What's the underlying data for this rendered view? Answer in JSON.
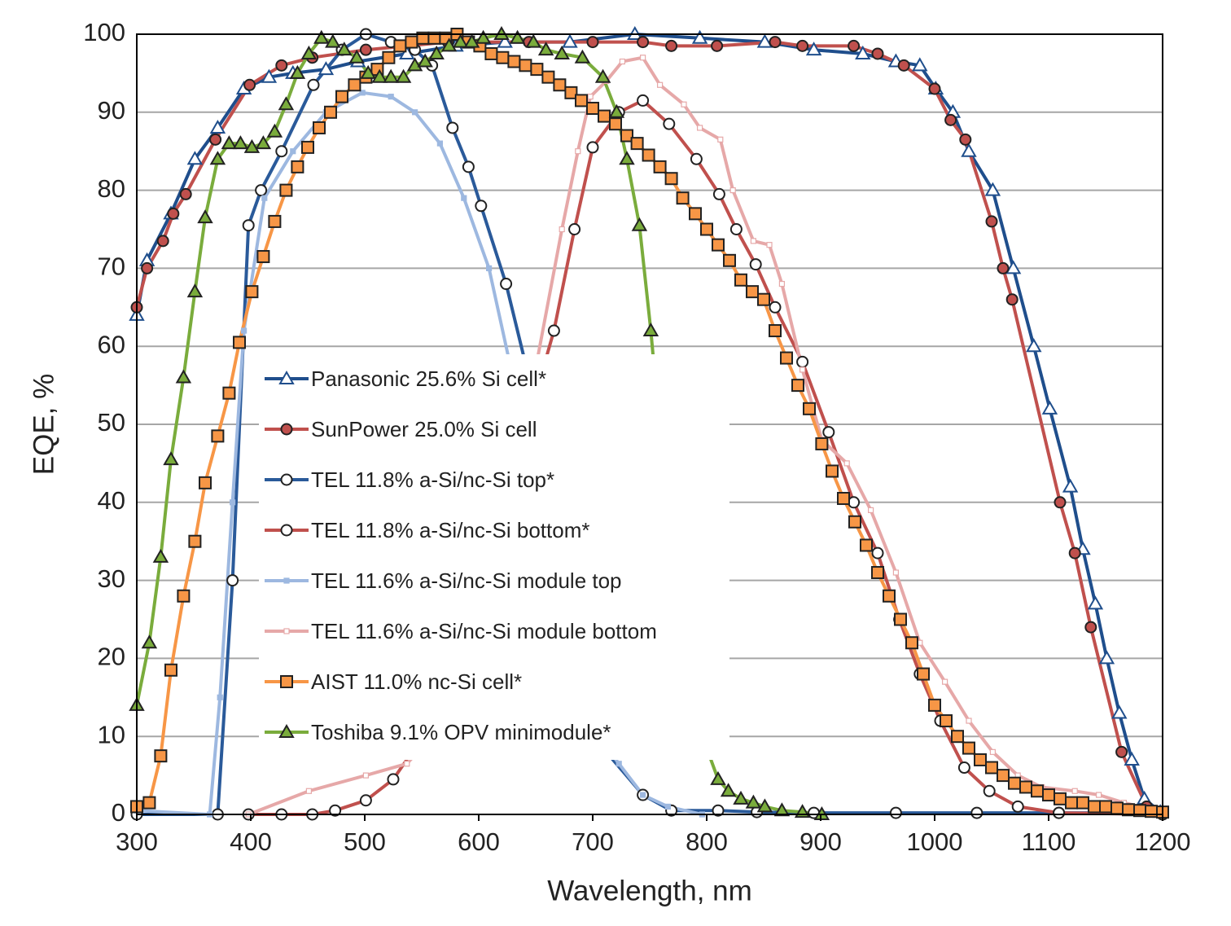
{
  "chart_data": {
    "type": "line",
    "xlabel": "Wavelength, nm",
    "ylabel": "EQE, %",
    "xlim": [
      300,
      1200
    ],
    "ylim": [
      0,
      100
    ],
    "xticks": [
      300,
      400,
      500,
      600,
      700,
      800,
      900,
      1000,
      1100,
      1200
    ],
    "yticks": [
      0,
      10,
      20,
      30,
      40,
      50,
      60,
      70,
      80,
      90,
      100
    ],
    "grid": true,
    "legend": "left",
    "series": [
      {
        "name": "Panasonic 25.6% Si cell*",
        "color": "#1f4e8c",
        "marker": "triangle",
        "marker_fill": "#ffffff",
        "x": [
          300,
          309,
          330,
          351,
          371,
          394,
          416,
          437,
          466,
          494,
          537,
          580,
          623,
          680,
          737,
          794,
          851,
          894,
          937,
          966,
          987,
          1001,
          1016,
          1030,
          1051,
          1069,
          1087,
          1101,
          1119,
          1130,
          1141,
          1151,
          1162,
          1173,
          1184,
          1198
        ],
        "values": [
          64,
          71,
          77,
          84,
          88,
          93,
          94.5,
          95,
          95.5,
          96.5,
          97.5,
          98.5,
          99,
          99,
          100,
          99.5,
          99,
          98,
          97.5,
          96.5,
          96,
          93,
          90,
          85,
          80,
          70,
          60,
          52,
          42,
          34,
          27,
          20,
          13,
          7,
          2,
          0.3
        ]
      },
      {
        "name": "SunPower 25.0% Si cell",
        "color": "#c0504d",
        "marker": "circle",
        "marker_fill": "#c0504d",
        "x": [
          300,
          309,
          323,
          332,
          343,
          369,
          399,
          427,
          454,
          501,
          573,
          644,
          700,
          744,
          769,
          809,
          860,
          884,
          929,
          950,
          973,
          1000,
          1014,
          1027,
          1050,
          1060,
          1068,
          1110,
          1123,
          1137,
          1164,
          1186,
          1200
        ],
        "values": [
          65,
          70,
          73.5,
          77,
          79.5,
          86.5,
          93.5,
          96,
          97,
          98,
          99,
          99,
          99,
          99,
          98.5,
          98.5,
          99,
          98.5,
          98.5,
          97.5,
          96,
          93,
          89,
          86.5,
          76,
          70,
          66,
          40,
          33.5,
          24,
          8,
          1,
          0
        ]
      },
      {
        "name": "TEL 11.8% a-Si/nc-Si top*",
        "color": "#2a5a9a",
        "marker": "circle",
        "marker_fill": "#ffffff",
        "x": [
          300,
          371,
          384,
          398,
          409,
          427,
          455,
          480,
          501,
          523,
          544,
          559,
          577,
          591,
          602,
          624,
          644,
          666,
          680,
          698,
          712,
          744,
          769,
          810,
          844,
          894,
          966,
          1037,
          1109,
          1200
        ],
        "values": [
          0,
          0,
          30,
          75.5,
          80,
          85,
          93.5,
          98,
          100,
          99,
          98,
          96,
          88,
          83,
          78,
          68,
          56,
          40,
          30,
          15.5,
          8,
          2.5,
          0.5,
          0.5,
          0.3,
          0.2,
          0.2,
          0.2,
          0.2,
          0.2
        ]
      },
      {
        "name": "TEL 11.8% a-Si/nc-Si bottom*",
        "color": "#c0504d",
        "marker": "circle",
        "marker_fill": "#ffffff",
        "x": [
          398,
          427,
          454,
          474,
          501,
          525,
          551,
          580,
          623,
          666,
          684,
          700,
          723,
          744,
          767,
          791,
          811,
          826,
          843,
          860,
          884,
          907,
          929,
          950,
          969,
          987,
          1005,
          1026,
          1048,
          1073,
          1109,
          1200
        ],
        "values": [
          0,
          0,
          0,
          0.5,
          1.8,
          4.5,
          10,
          20,
          40,
          62,
          75,
          85.5,
          90,
          91.5,
          88.5,
          84,
          79.5,
          75,
          70.5,
          65,
          58,
          49,
          40,
          33.5,
          25,
          18,
          12,
          6,
          3,
          1,
          0.2,
          0
        ]
      },
      {
        "name": "TEL 11.6% a-Si/nc-Si module top",
        "color": "#9db8e0",
        "marker": "small-square",
        "marker_fill": "#9db8e0",
        "x": [
          300,
          364,
          373,
          384,
          394,
          412,
          437,
          466,
          498,
          523,
          544,
          566,
          587,
          609,
          630,
          651,
          680,
          705,
          723,
          744,
          766,
          796
        ],
        "values": [
          0.5,
          0,
          15,
          40,
          62,
          79,
          85,
          90,
          92.5,
          92,
          90,
          86,
          79,
          70,
          56,
          42,
          24,
          10,
          6.5,
          2.5,
          1,
          0
        ]
      },
      {
        "name": "TEL 11.6% a-Si/nc-Si module bottom",
        "color": "#e6a8a8",
        "marker": "small-square",
        "marker_fill": "#ffffff",
        "x": [
          398,
          451,
          501,
          537,
          559,
          587,
          623,
          651,
          673,
          687,
          698,
          712,
          726,
          744,
          759,
          780,
          794,
          812,
          823,
          841,
          855,
          866,
          884,
          901,
          923,
          944,
          966,
          987,
          1009,
          1030,
          1051,
          1073,
          1094,
          1123,
          1144,
          1166,
          1200
        ],
        "values": [
          0,
          3,
          5,
          6.5,
          10,
          20,
          38,
          58,
          75,
          85,
          92,
          94,
          96.5,
          97,
          93.5,
          91,
          88,
          86.5,
          80,
          73.5,
          73,
          68,
          57,
          48,
          45,
          39,
          31,
          22,
          17,
          12,
          8,
          5,
          3.5,
          3,
          2.5,
          1.5,
          0.3
        ]
      },
      {
        "name": "AIST 11.0% nc-Si cell*",
        "color": "#f79646",
        "marker": "square",
        "marker_fill": "#f79646",
        "x": [
          300,
          311,
          321,
          330,
          341,
          351,
          360,
          371,
          381,
          390,
          401,
          411,
          421,
          431,
          441,
          450,
          460,
          470,
          480,
          491,
          501,
          511,
          521,
          531,
          541,
          551,
          561,
          571,
          581,
          591,
          601,
          611,
          621,
          631,
          641,
          651,
          661,
          671,
          681,
          690,
          700,
          710,
          720,
          730,
          739,
          749,
          759,
          769,
          779,
          790,
          800,
          810,
          820,
          830,
          840,
          850,
          860,
          870,
          880,
          890,
          901,
          910,
          920,
          930,
          940,
          950,
          960,
          970,
          980,
          990,
          1000,
          1010,
          1020,
          1030,
          1040,
          1050,
          1060,
          1070,
          1080,
          1090,
          1100,
          1110,
          1120,
          1130,
          1140,
          1150,
          1160,
          1170,
          1180,
          1190,
          1200
        ],
        "values": [
          1,
          1.5,
          7.5,
          18.5,
          28,
          35,
          42.5,
          48.5,
          54,
          60.5,
          67,
          71.5,
          76,
          80,
          83,
          85.5,
          88,
          90,
          92,
          93.5,
          94.5,
          95.5,
          97,
          98.5,
          99,
          99.5,
          99.5,
          99.5,
          100,
          99,
          98.5,
          97.5,
          97,
          96.5,
          96,
          95.5,
          94.5,
          93.5,
          92.5,
          91.5,
          90.5,
          89.5,
          88.5,
          87,
          86,
          84.5,
          83,
          81.5,
          79,
          77,
          75,
          73,
          71,
          68.5,
          67,
          66,
          62,
          58.5,
          55,
          52,
          47.5,
          44,
          40.5,
          37.5,
          34.5,
          31,
          28,
          25,
          22,
          18,
          14,
          12,
          10,
          8.5,
          7,
          6,
          5,
          4,
          3.5,
          3,
          2.5,
          2,
          1.5,
          1.5,
          1,
          1,
          0.8,
          0.6,
          0.5,
          0.4,
          0.3
        ]
      },
      {
        "name": "Toshiba 9.1% OPV minimodule*",
        "color": "#7aac3c",
        "marker": "triangle",
        "marker_fill": "#7aac3c",
        "x": [
          300,
          311,
          321,
          330,
          341,
          351,
          360,
          371,
          381,
          391,
          401,
          411,
          421,
          431,
          441,
          451,
          462,
          472,
          482,
          493,
          503,
          513,
          523,
          534,
          544,
          553,
          563,
          574,
          584,
          594,
          604,
          620,
          634,
          648,
          659,
          673,
          691,
          709,
          721,
          730,
          741,
          751,
          760,
          770,
          780,
          791,
          800,
          810,
          819,
          830,
          841,
          851,
          866,
          884,
          901
        ],
        "values": [
          14,
          22,
          33,
          45.5,
          56,
          67,
          76.5,
          84,
          86,
          86,
          85.5,
          86,
          87.5,
          91,
          95,
          97.5,
          99.5,
          99,
          98,
          97,
          95,
          94.5,
          94.5,
          94.5,
          96,
          96.5,
          97.5,
          98.5,
          99,
          99,
          99.5,
          100,
          99.5,
          99,
          98,
          97.5,
          97,
          94.5,
          90,
          84,
          75.5,
          62,
          47.5,
          34.5,
          23,
          13.5,
          8.5,
          4.5,
          3,
          2,
          1.5,
          1,
          0.5,
          0.3,
          0
        ]
      }
    ]
  }
}
